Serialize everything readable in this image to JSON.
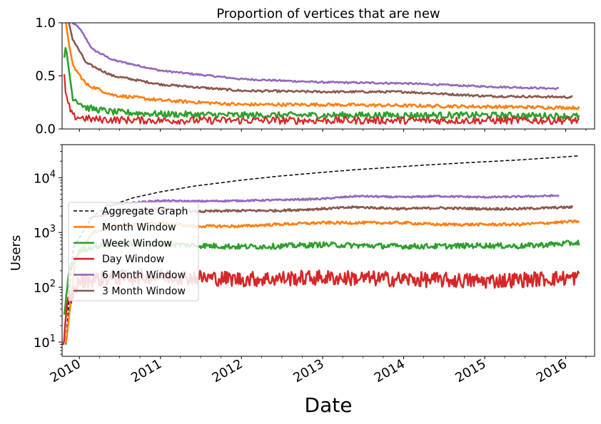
{
  "chart_data": [
    {
      "type": "line",
      "title": "Proportion of vertices that are new",
      "xlabel": "",
      "ylabel": "",
      "x_range": [
        "2009-10-15",
        "2016-05-10"
      ],
      "ylim": [
        0,
        1.0
      ],
      "y_ticks": [
        "0.0",
        "0.5",
        "1.0"
      ],
      "grid": false,
      "series": [
        {
          "key": "month",
          "color": "#ff7f0e",
          "x": [
            "2009-11-01",
            "2009-12-01",
            "2010-02-01",
            "2010-06-01",
            "2011-01-01",
            "2012-01-01",
            "2013-01-01",
            "2014-01-01",
            "2015-01-01",
            "2016-03-01"
          ],
          "y": [
            1.0,
            0.6,
            0.42,
            0.32,
            0.27,
            0.23,
            0.23,
            0.22,
            0.21,
            0.2
          ]
        },
        {
          "key": "week",
          "color": "#2ca02c",
          "x": [
            "2009-10-25",
            "2009-11-01",
            "2009-12-01",
            "2010-02-01",
            "2010-06-01",
            "2011-01-01",
            "2012-01-01",
            "2013-01-01",
            "2014-01-01",
            "2015-01-01",
            "2016-03-01"
          ],
          "y": [
            0.65,
            0.78,
            0.3,
            0.2,
            0.16,
            0.14,
            0.13,
            0.13,
            0.13,
            0.13,
            0.12
          ]
        },
        {
          "key": "day",
          "color": "#d62728",
          "x": [
            "2009-10-25",
            "2009-11-01",
            "2009-12-01",
            "2010-03-01",
            "2011-01-01",
            "2012-01-01",
            "2013-01-01",
            "2014-01-01",
            "2015-01-01",
            "2016-03-01"
          ],
          "y": [
            0.5,
            0.3,
            0.12,
            0.09,
            0.08,
            0.08,
            0.08,
            0.08,
            0.08,
            0.08
          ]
        },
        {
          "key": "m6",
          "color": "#9467bd",
          "x": [
            "2009-12-01",
            "2010-01-01",
            "2010-03-01",
            "2010-06-01",
            "2011-01-01",
            "2012-01-01",
            "2013-01-01",
            "2014-01-01",
            "2015-01-01",
            "2015-12-01"
          ],
          "y": [
            1.0,
            0.95,
            0.75,
            0.65,
            0.55,
            0.47,
            0.44,
            0.43,
            0.4,
            0.38
          ]
        },
        {
          "key": "m3",
          "color": "#8c564b",
          "x": [
            "2009-11-15",
            "2009-12-01",
            "2010-02-01",
            "2010-06-01",
            "2011-01-01",
            "2012-01-01",
            "2013-01-01",
            "2014-01-01",
            "2015-01-01",
            "2016-02-01"
          ],
          "y": [
            1.0,
            0.85,
            0.62,
            0.5,
            0.42,
            0.36,
            0.35,
            0.35,
            0.31,
            0.3
          ]
        }
      ]
    },
    {
      "type": "line",
      "title": "",
      "xlabel": "Date",
      "ylabel": "Users",
      "x_range": [
        "2009-10-15",
        "2016-05-10"
      ],
      "ylim": [
        5.5,
        40000
      ],
      "yscale": "log",
      "x_ticks": [
        {
          "date": "2010-01-01",
          "label": "2010"
        },
        {
          "date": "2011-01-01",
          "label": "2011"
        },
        {
          "date": "2012-01-01",
          "label": "2012"
        },
        {
          "date": "2013-01-01",
          "label": "2013"
        },
        {
          "date": "2014-01-01",
          "label": "2014"
        },
        {
          "date": "2015-01-01",
          "label": "2015"
        },
        {
          "date": "2016-01-01",
          "label": "2016"
        }
      ],
      "y_ticks": [
        {
          "value": 10,
          "base": "10",
          "exp": "1"
        },
        {
          "value": 100,
          "base": "10",
          "exp": "2"
        },
        {
          "value": 1000,
          "base": "10",
          "exp": "3"
        },
        {
          "value": 10000,
          "base": "10",
          "exp": "4"
        }
      ],
      "grid": false,
      "legend_position": "center-left",
      "series": [
        {
          "key": "agg",
          "name": "Aggregate Graph",
          "color": "#000000",
          "dash": true,
          "x": [
            "2009-11-01",
            "2009-12-01",
            "2010-03-01",
            "2010-06-01",
            "2010-09-01",
            "2011-01-01",
            "2011-06-01",
            "2012-01-01",
            "2012-06-01",
            "2013-01-01",
            "2013-06-01",
            "2014-01-01",
            "2014-06-01",
            "2015-01-01",
            "2015-06-01",
            "2016-03-01"
          ],
          "y": [
            9,
            500,
            2000,
            3200,
            4300,
            5500,
            7000,
            9000,
            10500,
            12500,
            14000,
            16000,
            17500,
            19500,
            21000,
            25000
          ]
        },
        {
          "key": "month",
          "name": "Month Window",
          "color": "#ff7f0e",
          "x": [
            "2009-11-01",
            "2009-12-15",
            "2010-03-01",
            "2010-06-01",
            "2011-01-01",
            "2011-06-01",
            "2012-01-01",
            "2012-06-01",
            "2013-01-01",
            "2013-06-01",
            "2014-01-01",
            "2014-06-01",
            "2015-01-01",
            "2015-06-01",
            "2016-03-01"
          ],
          "y": [
            9,
            350,
            1000,
            1300,
            1500,
            1300,
            1300,
            1400,
            1500,
            1500,
            1500,
            1400,
            1400,
            1400,
            1600
          ]
        },
        {
          "key": "week",
          "name": "Week Window",
          "color": "#2ca02c",
          "x": [
            "2009-10-25",
            "2009-11-15",
            "2010-01-01",
            "2010-03-01",
            "2010-06-01",
            "2011-01-01",
            "2011-06-01",
            "2012-01-01",
            "2012-06-01",
            "2013-01-01",
            "2013-06-01",
            "2014-01-01",
            "2014-06-01",
            "2015-01-01",
            "2015-06-01",
            "2016-03-01"
          ],
          "y": [
            30,
            200,
            450,
            550,
            600,
            620,
            580,
            550,
            560,
            600,
            580,
            560,
            560,
            580,
            560,
            650
          ]
        },
        {
          "key": "day",
          "name": "Day Window",
          "color": "#d62728",
          "x": [
            "2009-10-20",
            "2009-11-10",
            "2010-01-01",
            "2010-06-01",
            "2011-01-01",
            "2012-01-01",
            "2013-01-01",
            "2014-01-01",
            "2015-01-01",
            "2016-03-01"
          ],
          "y": [
            8,
            50,
            130,
            150,
            160,
            140,
            150,
            140,
            130,
            150
          ]
        },
        {
          "key": "m6",
          "name": "6 Month Window",
          "color": "#9467bd",
          "x": [
            "2010-05-01",
            "2010-09-01",
            "2011-01-01",
            "2011-06-01",
            "2012-01-01",
            "2012-06-01",
            "2013-01-01",
            "2013-06-01",
            "2014-01-01",
            "2014-06-01",
            "2015-01-01",
            "2015-06-01",
            "2015-12-01"
          ],
          "y": [
            3100,
            3500,
            3800,
            3700,
            3800,
            3900,
            4100,
            4600,
            4400,
            4600,
            4400,
            4500,
            4700
          ]
        },
        {
          "key": "m3",
          "name": "3 Month Window",
          "color": "#8c564b",
          "x": [
            "2010-02-15",
            "2010-06-01",
            "2010-09-01",
            "2011-01-01",
            "2011-06-01",
            "2012-01-01",
            "2012-06-01",
            "2013-01-01",
            "2013-06-01",
            "2014-01-01",
            "2014-06-01",
            "2015-01-01",
            "2015-06-01",
            "2016-02-01"
          ],
          "y": [
            1800,
            2300,
            2500,
            2700,
            2400,
            2500,
            2500,
            2700,
            2900,
            2700,
            2800,
            2700,
            2700,
            2900
          ]
        }
      ]
    }
  ]
}
